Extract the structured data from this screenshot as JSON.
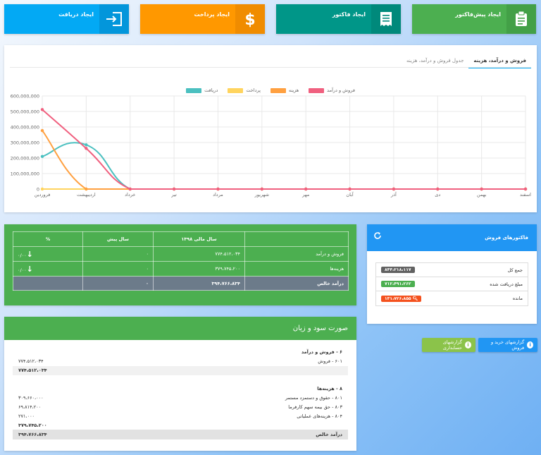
{
  "tiles": [
    {
      "label": "ایجاد پیش‌فاکتور",
      "icon": "clipboard-icon"
    },
    {
      "label": "ایجاد فاکتور",
      "icon": "receipt-icon"
    },
    {
      "label": "ایجاد پرداخت",
      "icon": "dollar-icon"
    },
    {
      "label": "ایجاد دریافت",
      "icon": "sign-in-icon"
    }
  ],
  "chart_tabs": {
    "active": "فروش و درآمد، هزینه",
    "inactive": "جدول فروش و درآمد، هزینه"
  },
  "chart_data": {
    "type": "line",
    "categories": [
      "فروردین",
      "اردیبهشت",
      "خرداد",
      "تیر",
      "مرداد",
      "شهریور",
      "مهر",
      "آبان",
      "آذر",
      "دی",
      "بهمن",
      "اسفند"
    ],
    "y_ticks": [
      "0",
      "100,000,000",
      "200,000,000",
      "300,000,000",
      "400,000,000",
      "500,000,000",
      "600,000,000"
    ],
    "ylim": [
      0,
      600000000
    ],
    "grid": true,
    "legend_position": "top-center",
    "series": [
      {
        "name": "فروش و درآمد",
        "color": "#f0607f",
        "values": [
          512000000,
          262000000,
          0,
          0,
          0,
          0,
          0,
          0,
          0,
          0,
          0,
          0
        ]
      },
      {
        "name": "هزینه",
        "color": "#ffa040",
        "values": [
          377000000,
          0,
          0,
          0,
          0,
          0,
          0,
          0,
          0,
          0,
          0,
          0
        ]
      },
      {
        "name": "پرداخت",
        "color": "#ffd45e",
        "values": [
          0,
          0,
          0,
          0,
          0,
          0,
          0,
          0,
          0,
          0,
          0,
          0
        ]
      },
      {
        "name": "دریافت",
        "color": "#4bc0c0",
        "values": [
          210000000,
          285000000,
          0,
          0,
          0,
          0,
          0,
          0,
          0,
          0,
          0,
          0
        ]
      }
    ]
  },
  "comparison": {
    "headers": [
      "",
      "سال مالی ۱۳۹۸",
      "سال پیش",
      "%"
    ],
    "rows": [
      {
        "label": "فروش و درآمد",
        "current": "۷۷۴،۵۱۲،۰۳۴",
        "previous": "۰",
        "percent": "۰/۰۰"
      },
      {
        "label": "هزینه‌ها",
        "current": "۳۷۹،۷۴۵،۲۰۰",
        "previous": "۰",
        "percent": "۰/۰۰"
      }
    ],
    "total": {
      "label": "درآمد خالص",
      "current": "۳۹۴،۷۶۶،۸۳۴",
      "previous": "۰",
      "percent": ""
    }
  },
  "invoices": {
    "title": "فاکتورهای فروش",
    "rows": [
      {
        "label": "جمع کل",
        "value": "۸۴۴،۲۱۸،۱۱۷",
        "color": "#616161"
      },
      {
        "label": "مبلغ دریافت شده",
        "value": "۷۱۲،۴۹۱،۲۶۲",
        "color": "#4caf50"
      },
      {
        "label": "مانده",
        "value": "۱۳۱،۷۲۶،۸۵۵",
        "color": "#f4511e"
      }
    ]
  },
  "report_buttons": [
    {
      "label": "گزارشهای خرید و فروش"
    },
    {
      "label": "گزارشهای حسابداری"
    }
  ],
  "profit_loss": {
    "title": "صورت سود و زیان",
    "rows": [
      {
        "label": "۶ - فروش و درآمد",
        "amount": "",
        "style": "bold"
      },
      {
        "label": "۶۰۱ - فروش",
        "amount": "۷۷۴،۵۱۲،۰۳۴",
        "style": "normal"
      },
      {
        "label": "",
        "amount": "۷۷۴،۵۱۲،۰۳۴",
        "style": "bold-shaded"
      },
      {
        "label": "",
        "amount": "",
        "style": "normal"
      },
      {
        "label": "۸ - هزینه‌ها",
        "amount": "",
        "style": "bold"
      },
      {
        "label": "۸۰۱ - حقوق و دستمزد مستمر",
        "amount": "۳۰۹،۶۶۰،۰۰۰",
        "style": "normal"
      },
      {
        "label": "۸۰۳ - حق بیمه سهم کارفرما",
        "amount": "۶۹،۸۱۴،۲۰۰",
        "style": "normal"
      },
      {
        "label": "۸۰۴ - هزینه‌های عملیاتی",
        "amount": "۲۷۱،۰۰۰",
        "style": "normal"
      },
      {
        "label": "",
        "amount": "۳۷۹،۷۴۵،۲۰۰",
        "style": "bold"
      },
      {
        "label": "درآمد خالص",
        "amount": "۳۹۴،۷۶۶،۸۳۴",
        "style": "net"
      }
    ]
  }
}
